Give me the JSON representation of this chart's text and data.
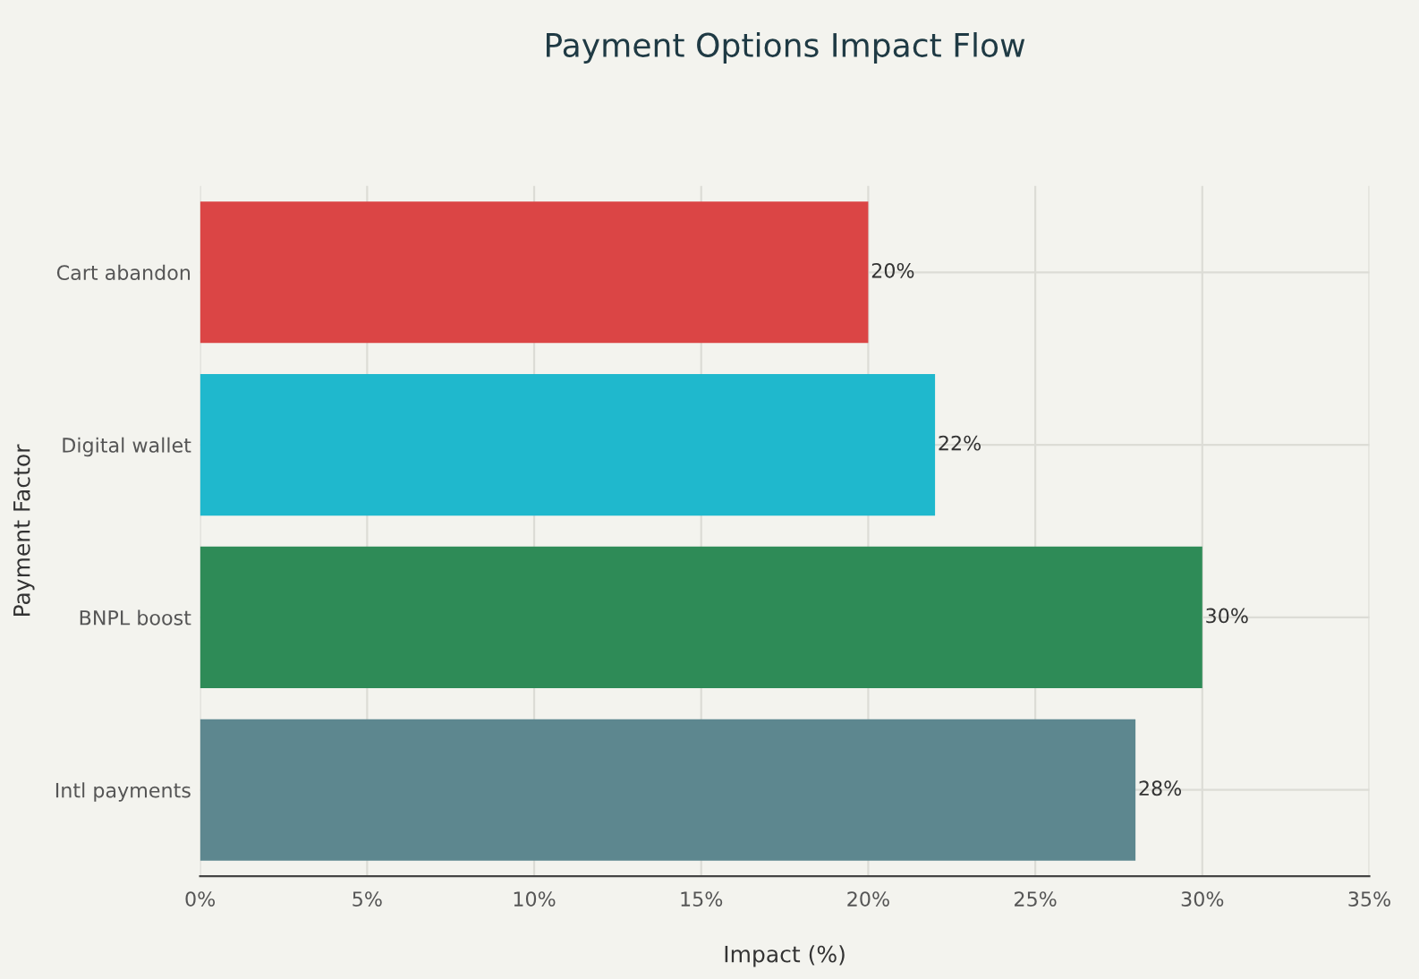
{
  "chart_data": {
    "type": "bar",
    "orientation": "horizontal",
    "title": "Payment Options Impact Flow",
    "xlabel": "Impact (%)",
    "ylabel": "Payment Factor",
    "categories": [
      "Cart abandon",
      "Digital wallet",
      "BNPL boost",
      "Intl payments"
    ],
    "values": [
      20,
      22,
      30,
      28
    ],
    "colors": [
      "#db4545",
      "#1fb8cd",
      "#2e8b57",
      "#5d878f"
    ],
    "value_labels": [
      "20%",
      "22%",
      "30%",
      "28%"
    ],
    "xlim": [
      0,
      35
    ],
    "xticks": [
      {
        "value": 0,
        "label": "0%"
      },
      {
        "value": 5,
        "label": "5%"
      },
      {
        "value": 10,
        "label": "10%"
      },
      {
        "value": 15,
        "label": "15%"
      },
      {
        "value": 20,
        "label": "20%"
      },
      {
        "value": 25,
        "label": "25%"
      },
      {
        "value": 30,
        "label": "30%"
      },
      {
        "value": 35,
        "label": "35%"
      }
    ],
    "grid": true,
    "legend": false
  }
}
